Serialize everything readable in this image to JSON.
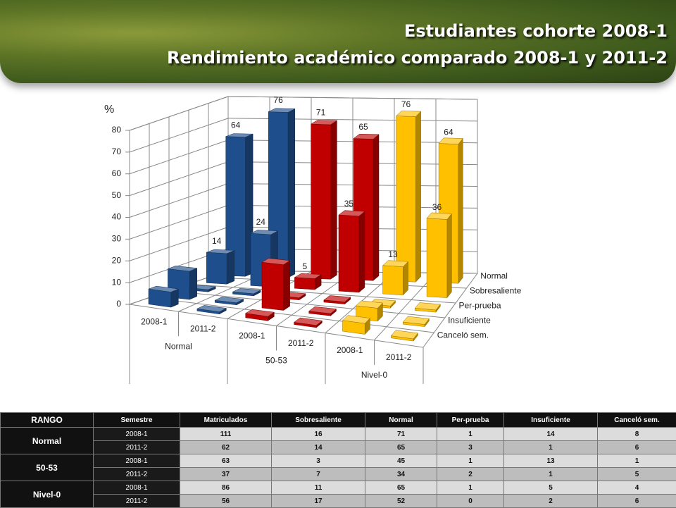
{
  "header": {
    "title": "Estudiantes cohorte 2008-1",
    "subtitle": "Rendimiento académico comparado 2008-1 y 2011-2"
  },
  "chart_data": {
    "type": "bar3d",
    "y_label": "%",
    "categories": [
      "2008-1",
      "2011-2",
      "2008-1",
      "2011-2",
      "2008-1",
      "2011-2"
    ],
    "groups": [
      {
        "label": "Normal",
        "color": "#1f4e8c"
      },
      {
        "label": "50-53",
        "color": "#c00000"
      },
      {
        "label": "Nivel-0",
        "color": "#ffc000"
      }
    ],
    "series": [
      {
        "name": "Normal",
        "values": [
          64,
          76,
          71,
          65,
          76,
          64
        ],
        "labels": true
      },
      {
        "name": "Sobresaliente",
        "values": [
          14,
          24,
          5,
          35,
          13,
          36
        ],
        "labels": true
      },
      {
        "name": "Per-prueba",
        "values": [
          1,
          1,
          1,
          1,
          1,
          1
        ],
        "labels": false
      },
      {
        "name": "Insuficiente",
        "values": [
          13,
          1,
          21,
          1,
          6,
          1
        ],
        "labels": false
      },
      {
        "name": "Canceló sem.",
        "values": [
          7,
          1,
          2,
          1,
          5,
          1
        ],
        "labels": false
      }
    ],
    "ylim": [
      0,
      80
    ],
    "yticks": [
      0,
      10,
      20,
      30,
      40,
      50,
      60,
      70,
      80
    ],
    "grid": true
  },
  "table": {
    "header": [
      "RANGO",
      "Semestre",
      "Matriculados",
      "Sobresaliente",
      "Normal",
      "Per-prueba",
      "Insuficiente",
      "Canceló sem."
    ],
    "groups": [
      {
        "rango": "Normal",
        "rows": [
          [
            "2008-1",
            111,
            16,
            71,
            1,
            14,
            8
          ],
          [
            "2011-2",
            62,
            14,
            65,
            3,
            1,
            6
          ]
        ]
      },
      {
        "rango": "50-53",
        "rows": [
          [
            "2008-1",
            63,
            3,
            45,
            1,
            13,
            1
          ],
          [
            "2011-2",
            37,
            7,
            34,
            2,
            1,
            5
          ]
        ]
      },
      {
        "rango": "Nivel-0",
        "rows": [
          [
            "2008-1",
            86,
            11,
            65,
            1,
            5,
            4
          ],
          [
            "2011-2",
            56,
            17,
            52,
            0,
            2,
            6
          ]
        ]
      }
    ]
  }
}
